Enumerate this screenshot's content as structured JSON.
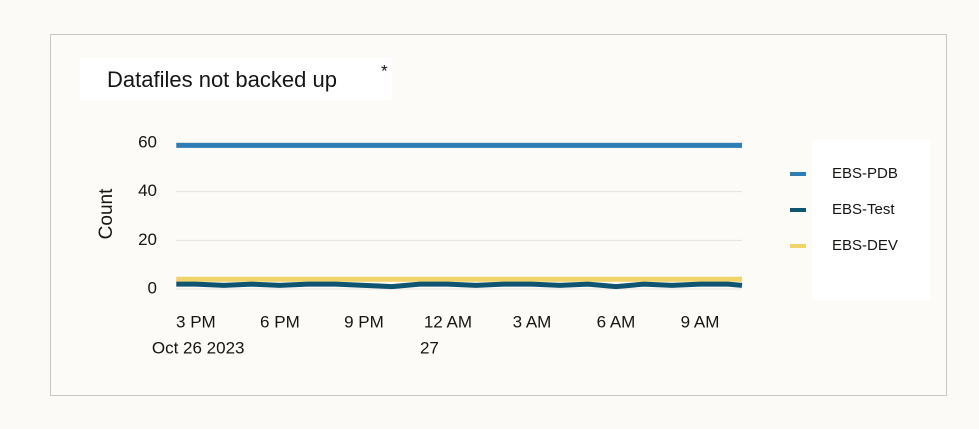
{
  "chart_data": {
    "type": "line",
    "title": "Datafiles not backed up",
    "title_marker": "*",
    "y_label": "Count",
    "x": [
      14.3,
      15,
      16,
      17,
      18,
      19,
      20,
      21,
      22,
      23,
      24,
      25,
      26,
      27,
      28,
      29,
      30,
      31,
      32,
      33,
      34,
      34.5
    ],
    "xlim": [
      14.29,
      34.5
    ],
    "xticks": [
      {
        "value": 15,
        "label": "3 PM"
      },
      {
        "value": 18,
        "label": "6 PM"
      },
      {
        "value": 21,
        "label": "9 PM"
      },
      {
        "value": 24,
        "label": "12 AM"
      },
      {
        "value": 27,
        "label": "3 AM"
      },
      {
        "value": 30,
        "label": "6 AM"
      },
      {
        "value": 33,
        "label": "9 AM"
      }
    ],
    "x_date_labels": [
      {
        "value": 15,
        "label": "Oct 26 2023"
      },
      {
        "value": 24,
        "label": "27"
      }
    ],
    "ylim": [
      0,
      60
    ],
    "yticks": [
      0,
      20,
      40,
      60
    ],
    "grid": true,
    "legend": "right",
    "series": [
      {
        "name": "EBS-PDB",
        "color": "#2e7db5",
        "values": [
          59,
          59,
          59,
          59,
          59,
          59,
          59,
          59,
          59,
          59,
          59,
          59,
          59,
          59,
          59,
          59,
          59,
          59,
          59,
          59,
          59,
          59
        ]
      },
      {
        "name": "EBS-Test",
        "color": "#0f5470",
        "values": [
          2,
          2,
          1.5,
          2,
          1.5,
          2,
          2,
          1.5,
          1,
          2,
          2,
          1.5,
          2,
          2,
          1.5,
          2,
          1,
          2,
          1.5,
          2,
          2,
          1.5
        ]
      },
      {
        "name": "EBS-DEV",
        "color": "#f0d46a",
        "values": [
          4,
          4,
          4,
          4,
          4,
          4,
          4,
          4,
          4,
          4,
          4,
          4,
          4,
          4,
          4,
          4,
          4,
          4,
          4,
          4,
          4,
          4
        ]
      }
    ]
  }
}
